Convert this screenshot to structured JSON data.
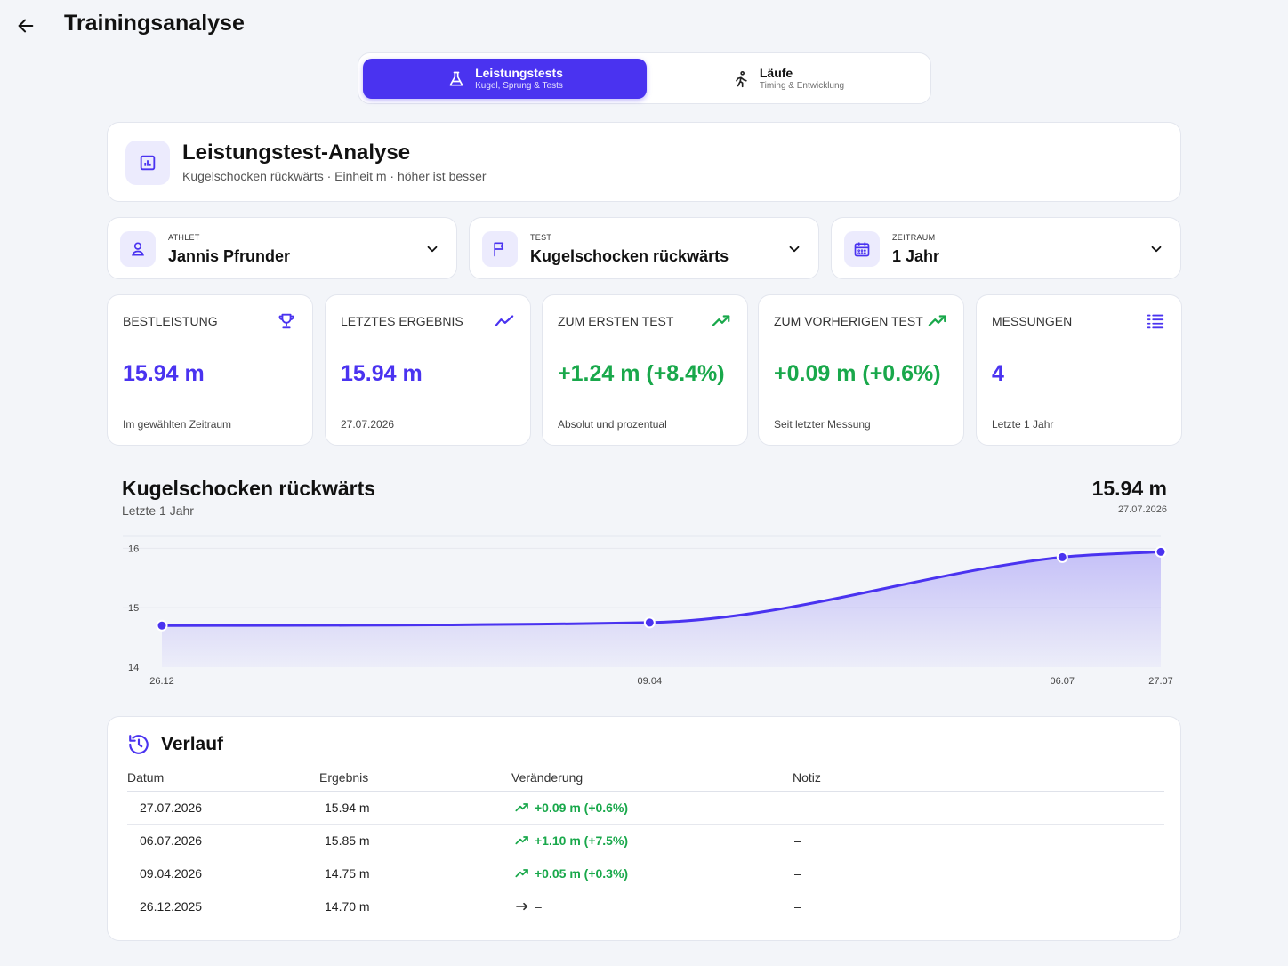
{
  "header": {
    "title": "Trainingsanalyse"
  },
  "tabs": [
    {
      "label": "Leistungstests",
      "sub": "Kugel, Sprung & Tests",
      "icon": "flask-icon",
      "active": true
    },
    {
      "label": "Läufe",
      "sub": "Timing & Entwicklung",
      "icon": "runner-icon",
      "active": false
    }
  ],
  "analyse": {
    "title": "Leistungstest-Analyse",
    "subtitle": "Kugelschocken rückwärts · Einheit m · höher ist besser"
  },
  "filters": {
    "athlet": {
      "label": "ATHLET",
      "value": "Jannis Pfrunder"
    },
    "test": {
      "label": "TEST",
      "value": "Kugelschocken rückwärts"
    },
    "zeitraum": {
      "label": "ZEITRAUM",
      "value": "1 Jahr"
    }
  },
  "stats": [
    {
      "label": "BESTLEISTUNG",
      "value": "15.94 m",
      "sub": "Im gewählten Zeitraum",
      "color": "#4a33f0",
      "icon": "trophy-icon"
    },
    {
      "label": "LETZTES ERGEBNIS",
      "value": "15.94 m",
      "sub": "27.07.2026",
      "color": "#4a33f0",
      "icon": "trend-line-icon"
    },
    {
      "label": "ZUM ERSTEN TEST",
      "value": "+1.24 m (+8.4%)",
      "sub": "Absolut und prozentual",
      "color": "#19a84b",
      "icon": "trend-up-icon"
    },
    {
      "label": "ZUM VORHERIGEN TEST",
      "value": "+0.09 m (+0.6%)",
      "sub": "Seit letzter Messung",
      "color": "#19a84b",
      "icon": "trend-up-icon"
    },
    {
      "label": "MESSUNGEN",
      "value": "4",
      "sub": "Letzte 1 Jahr",
      "color": "#4a33f0",
      "icon": "list-icon"
    }
  ],
  "chart_summary": {
    "title": "Kugelschocken rückwärts",
    "subtitle": "Letzte 1 Jahr",
    "latest_value": "15.94 m",
    "latest_date": "27.07.2026"
  },
  "chart_data": {
    "type": "area",
    "title": "Kugelschocken rückwärts",
    "x": [
      "26.12",
      "09.04",
      "06.07",
      "27.07"
    ],
    "x_dates": [
      "2025-12-26",
      "2026-04-09",
      "2026-07-06",
      "2026-07-27"
    ],
    "values": [
      14.7,
      14.75,
      15.85,
      15.94
    ],
    "ylim": [
      14,
      16.2
    ],
    "y_ticks": [
      "14",
      "15",
      "16"
    ],
    "grid": true,
    "color": "#4a33f0"
  },
  "verlauf": {
    "title": "Verlauf",
    "columns": [
      "Datum",
      "Ergebnis",
      "Veränderung",
      "Notiz"
    ],
    "rows": [
      {
        "datum": "27.07.2026",
        "ergebnis": "15.94 m",
        "change": "+0.09 m (+0.6%)",
        "trend": "up",
        "notiz": "–"
      },
      {
        "datum": "06.07.2026",
        "ergebnis": "15.85 m",
        "change": "+1.10 m (+7.5%)",
        "trend": "up",
        "notiz": "–"
      },
      {
        "datum": "09.04.2026",
        "ergebnis": "14.75 m",
        "change": "+0.05 m (+0.3%)",
        "trend": "up",
        "notiz": "–"
      },
      {
        "datum": "26.12.2025",
        "ergebnis": "14.70 m",
        "change": "–",
        "trend": "neutral",
        "notiz": "–"
      }
    ]
  }
}
